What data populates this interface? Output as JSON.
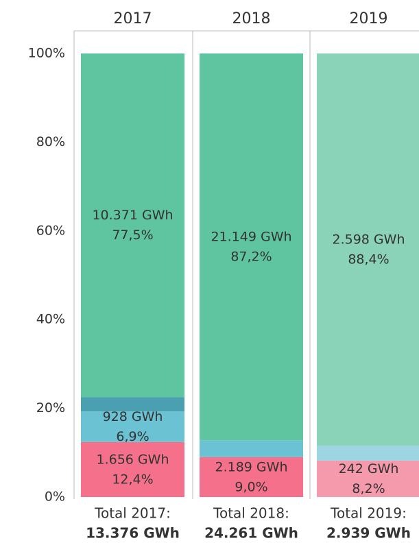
{
  "chart_data": {
    "type": "stacked_bar_100",
    "categories": [
      "2017",
      "2018",
      "2019"
    ],
    "ylim": [
      0,
      100
    ],
    "yticks": [
      {
        "value": 0,
        "label": "0%"
      },
      {
        "value": 20,
        "label": "20%"
      },
      {
        "value": 40,
        "label": "40%"
      },
      {
        "value": 60,
        "label": "60%"
      },
      {
        "value": 80,
        "label": "80%"
      },
      {
        "value": 100,
        "label": "100%"
      }
    ],
    "label_colors": [
      "#333333",
      "#333333",
      "#777777"
    ],
    "series": [
      {
        "colors": [
          "#f5708a",
          "#f5708a",
          "#f59aad"
        ],
        "values": [
          12.4,
          9.0,
          8.2
        ],
        "value_labels": [
          "12,4%",
          "9,0%",
          "8,2%"
        ],
        "gwh_labels": [
          "1.656 GWh",
          "2.189 GWh",
          "242 GWh"
        ]
      },
      {
        "colors": [
          "#6bc2d3",
          "#6bc2d3",
          "#9dd6e2"
        ],
        "values": [
          6.9,
          3.8,
          3.4
        ],
        "value_labels": [
          "6,9%",
          null,
          null
        ],
        "gwh_labels": [
          "928 GWh",
          null,
          null
        ]
      },
      {
        "colors": [
          "#4a9fb1",
          "#5fc4a0",
          "#8ad3b8"
        ],
        "values": [
          3.2,
          0,
          0
        ],
        "value_labels": [
          null,
          null,
          null
        ],
        "gwh_labels": [
          null,
          null,
          null
        ]
      },
      {
        "colors": [
          "#5fc4a0",
          "#5fc4a0",
          "#8ad3b8"
        ],
        "values": [
          77.5,
          87.2,
          88.4
        ],
        "value_labels": [
          "77,5%",
          "87,2%",
          "88,4%"
        ],
        "gwh_labels": [
          "10.371 GWh",
          "21.149 GWh",
          "2.598 GWh"
        ]
      }
    ],
    "totals": [
      {
        "label": "Total 2017:",
        "value_text": "13.376 GWh"
      },
      {
        "label": "Total 2018:",
        "value_text": "24.261 GWh"
      },
      {
        "label": "Total 2019:",
        "value_text": "2.939 GWh"
      }
    ]
  }
}
